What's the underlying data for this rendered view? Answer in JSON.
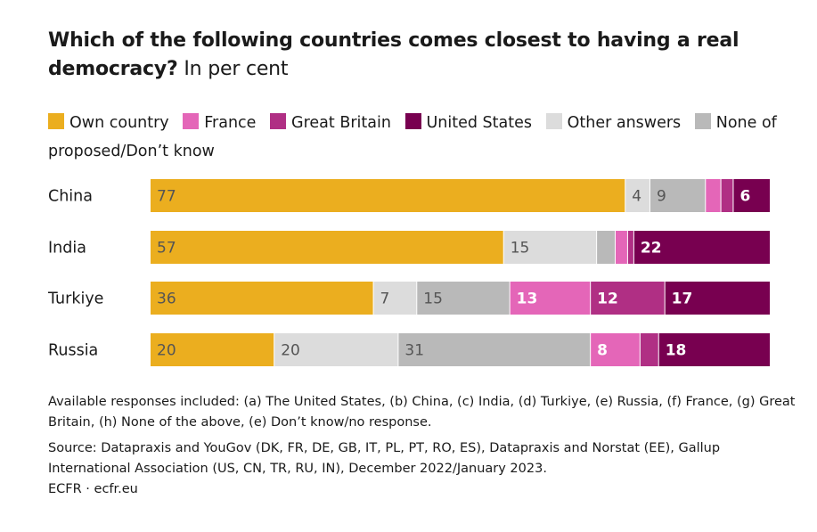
{
  "title_bold": "Which of the following countries comes closest to having a real democracy?",
  "title_light": "In per cent",
  "legend": [
    {
      "label": "Own country",
      "color": "#EBAE1F"
    },
    {
      "label": "France",
      "color": "#E466B8"
    },
    {
      "label": "Great Britain",
      "color": "#B02F84"
    },
    {
      "label": "United States",
      "color": "#780050"
    },
    {
      "label": "Other answers",
      "color": "#DCDCDC"
    },
    {
      "label": "None of proposed/Don’t know",
      "color": "#B9B9B9"
    }
  ],
  "chart_data": {
    "type": "bar",
    "orientation": "horizontal",
    "stacked": true,
    "categories": [
      "China",
      "India",
      "Turkiye",
      "Russia"
    ],
    "series": [
      {
        "name": "Own country",
        "values": [
          77,
          57,
          36,
          20
        ],
        "color": "#EBAE1F",
        "label_color": "#555555",
        "show": [
          true,
          true,
          true,
          true
        ]
      },
      {
        "name": "Other answers",
        "values": [
          4,
          15,
          7,
          20
        ],
        "color": "#DCDCDC",
        "label_color": "#555555",
        "show": [
          true,
          true,
          true,
          true
        ]
      },
      {
        "name": "None of proposed/Don’t know",
        "values": [
          9,
          3,
          15,
          31
        ],
        "color": "#B9B9B9",
        "label_color": "#555555",
        "show": [
          true,
          false,
          true,
          true
        ]
      },
      {
        "name": "France",
        "values": [
          2.5,
          2,
          13,
          8
        ],
        "color": "#E466B8",
        "label_color": "#ffffff",
        "show": [
          false,
          false,
          true,
          true
        ]
      },
      {
        "name": "Great Britain",
        "values": [
          2,
          1,
          12,
          3
        ],
        "color": "#B02F84",
        "label_color": "#ffffff",
        "show": [
          false,
          false,
          true,
          false
        ]
      },
      {
        "name": "United States",
        "values": [
          6,
          22,
          17,
          18
        ],
        "color": "#780050",
        "label_color": "#ffffff",
        "show": [
          true,
          true,
          true,
          true
        ]
      }
    ]
  },
  "note": "Available responses included: (a) The United States, (b) China, (c) India, (d) Turkiye, (e) Russia, (f) France, (g) Great Britain, (h) None of the above, (e) Don’t know/no response.",
  "source": "Source: Datapraxis and YouGov (DK, FR, DE, GB, IT, PL, PT, RO, ES), Datapraxis and Norstat (EE), Gallup International Association (US, CN, TR, RU, IN), December 2022/January 2023.",
  "credit": "ECFR · ecfr.eu"
}
